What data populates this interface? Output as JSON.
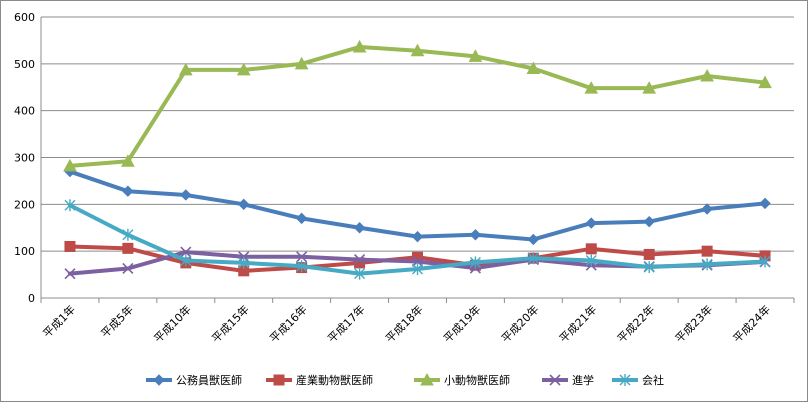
{
  "chart_data": {
    "type": "line",
    "categories": [
      "平成1年",
      "平成5年",
      "平成10年",
      "平成15年",
      "平成16年",
      "平成17年",
      "平成18年",
      "平成19年",
      "平成20年",
      "平成21年",
      "平成22年",
      "平成23年",
      "平成24年"
    ],
    "ylim": [
      0,
      600
    ],
    "yticks": [
      0,
      100,
      200,
      300,
      400,
      500,
      600
    ],
    "grid": true,
    "legend_position": "bottom",
    "series": [
      {
        "name": "公務員獣医師",
        "color": "#4a7ebb",
        "marker": "diamond",
        "values": [
          270,
          228,
          220,
          200,
          170,
          150,
          131,
          135,
          125,
          160,
          163,
          190,
          202
        ]
      },
      {
        "name": "産業動物獣医師",
        "color": "#be4b48",
        "marker": "square",
        "values": [
          110,
          106,
          75,
          58,
          65,
          75,
          87,
          70,
          85,
          105,
          93,
          100,
          90
        ]
      },
      {
        "name": "小動物獣医師",
        "color": "#98b954",
        "marker": "triangle",
        "values": [
          282,
          292,
          487,
          487,
          500,
          536,
          528,
          516,
          490,
          448,
          448,
          474,
          460
        ]
      },
      {
        "name": "進学",
        "color": "#7d60a0",
        "marker": "x",
        "values": [
          52,
          63,
          98,
          88,
          88,
          82,
          78,
          64,
          82,
          70,
          67,
          70,
          77
        ]
      },
      {
        "name": "会社",
        "color": "#46aac5",
        "marker": "star",
        "values": [
          198,
          135,
          80,
          75,
          68,
          52,
          62,
          76,
          85,
          80,
          66,
          72,
          78
        ]
      }
    ]
  }
}
